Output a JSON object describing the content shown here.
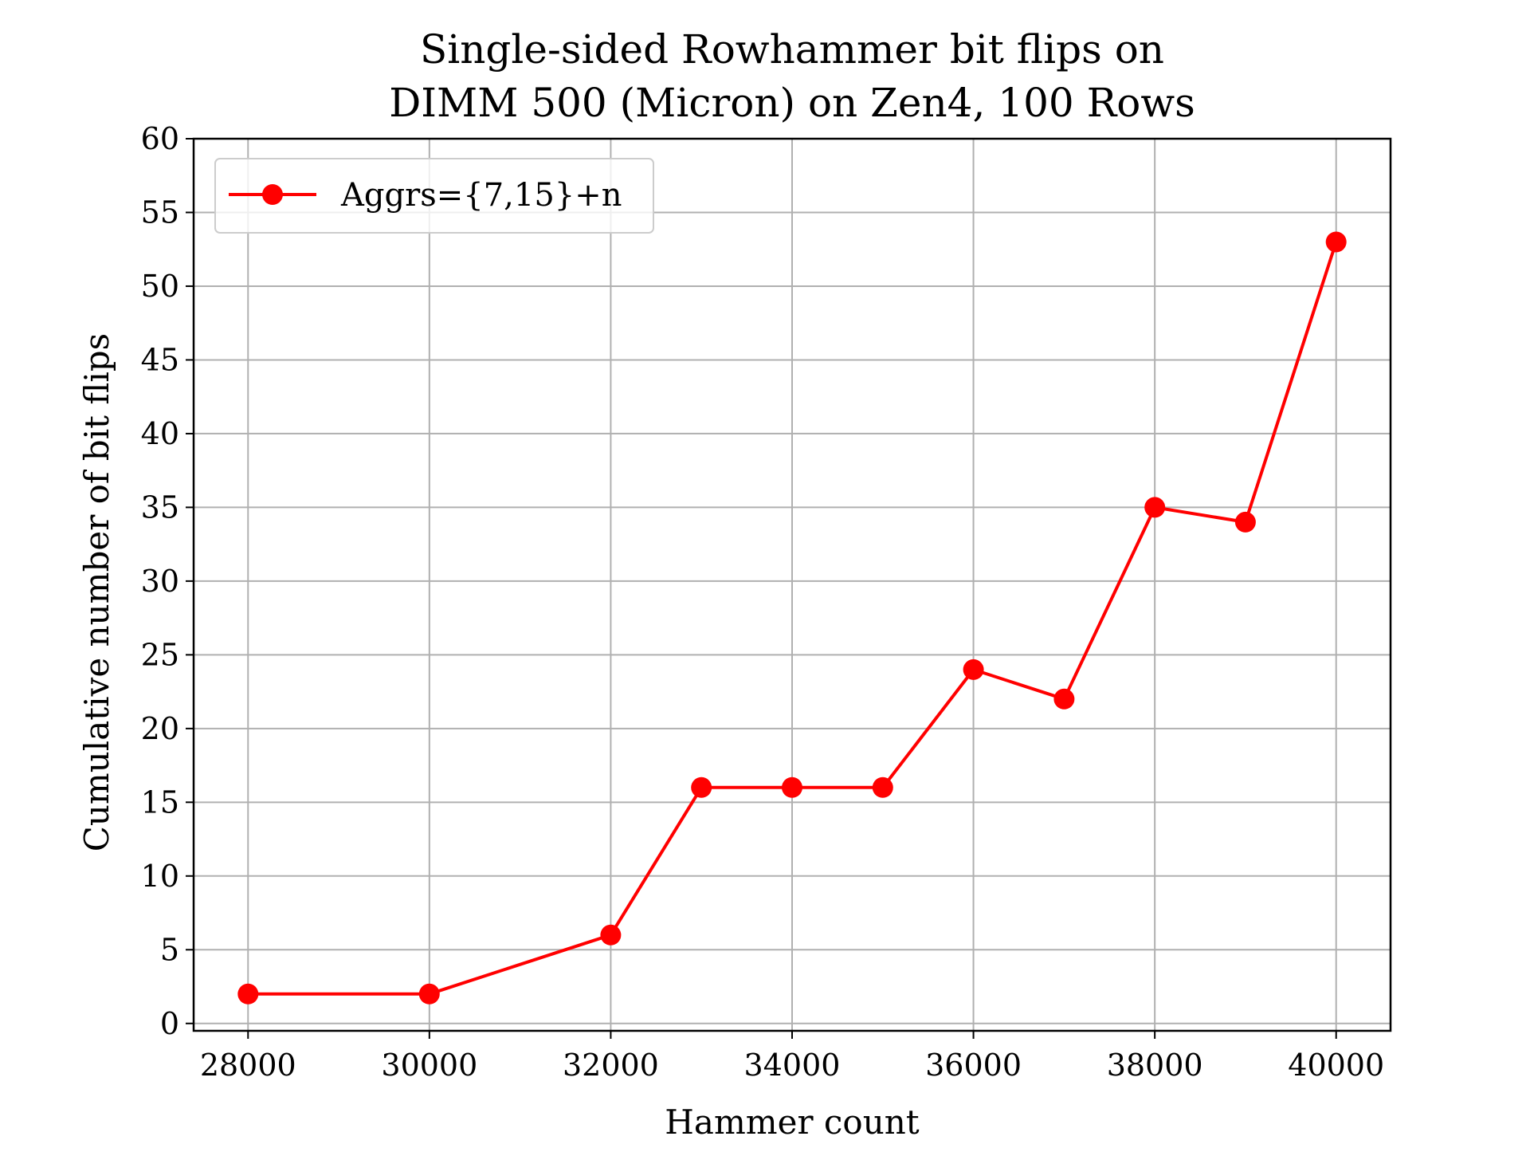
{
  "chart_data": {
    "type": "line",
    "title_lines": [
      "Single-sided Rowhammer bit flips on",
      "DIMM 500 (Micron) on Zen4, 100 Rows"
    ],
    "xlabel": "Hammer count",
    "ylabel": "Cumulative number of bit flips",
    "x": [
      28000,
      30000,
      32000,
      33000,
      34000,
      35000,
      36000,
      37000,
      38000,
      39000,
      40000
    ],
    "series": [
      {
        "name": "Aggrs={7,15}+n",
        "color": "#ff0000",
        "marker": "circle",
        "values": [
          2,
          2,
          6,
          16,
          16,
          16,
          24,
          22,
          35,
          34,
          53
        ]
      }
    ],
    "xlim": [
      27400,
      40600
    ],
    "ylim": [
      -0.5,
      60
    ],
    "xticks": [
      28000,
      30000,
      32000,
      34000,
      36000,
      38000,
      40000
    ],
    "xtick_labels": [
      "28000",
      "30000",
      "32000",
      "34000",
      "36000",
      "38000",
      "40000"
    ],
    "yticks": [
      0,
      5,
      10,
      15,
      20,
      25,
      30,
      35,
      40,
      45,
      50,
      55,
      60
    ],
    "ytick_labels": [
      "0",
      "5",
      "10",
      "15",
      "20",
      "25",
      "30",
      "35",
      "40",
      "45",
      "50",
      "55",
      "60"
    ],
    "grid": true,
    "legend_position": "upper-left",
    "colors": {
      "grid": "#b0b0b0",
      "axes": "#000000",
      "background": "#ffffff"
    }
  }
}
